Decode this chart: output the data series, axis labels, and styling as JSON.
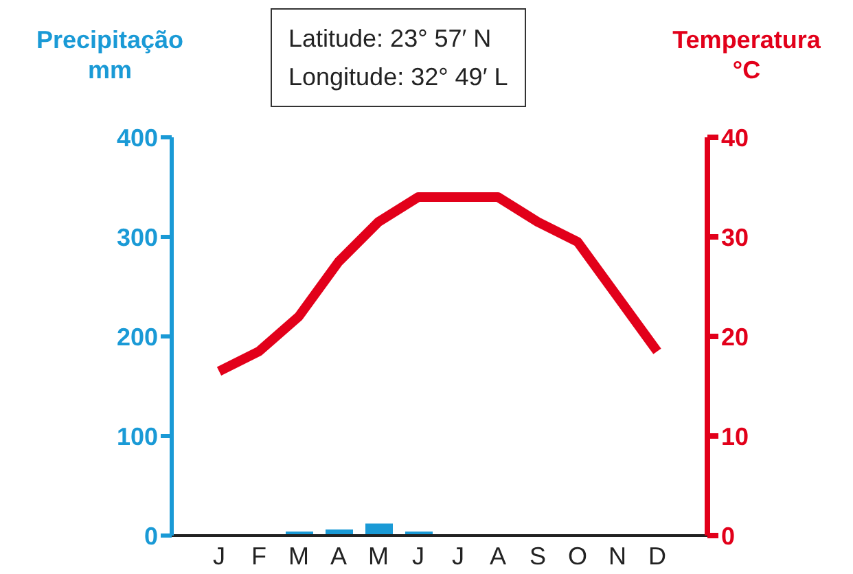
{
  "chart_data": {
    "type": "bar",
    "ylabel": "Precipitação mm",
    "y2label": "Temperatura °C",
    "annotations": [
      "Latitude: 23° 57′ N",
      "Longitude: 32° 49′ L"
    ],
    "categories": [
      "J",
      "F",
      "M",
      "A",
      "M",
      "J",
      "J",
      "A",
      "S",
      "O",
      "N",
      "D"
    ],
    "series": [
      {
        "axis": "y",
        "color": "#1a9ad6",
        "values": [
          0,
          0,
          4,
          6,
          12,
          4,
          0,
          0,
          0,
          0,
          0,
          0
        ]
      },
      {
        "type": "line",
        "axis": "y2",
        "color": "#e2001a",
        "values": [
          16.5,
          18.5,
          22,
          27.5,
          31.5,
          34,
          34,
          34,
          31.5,
          29.5,
          24,
          18.5
        ]
      }
    ],
    "ylim": [
      0,
      400
    ],
    "yticks": [
      0,
      100,
      200,
      300,
      400
    ],
    "y2lim": [
      0,
      40
    ],
    "y2ticks": [
      0,
      10,
      20,
      30,
      40
    ],
    "grid": false,
    "legend": false,
    "line_style": "solid",
    "marker": "none"
  }
}
